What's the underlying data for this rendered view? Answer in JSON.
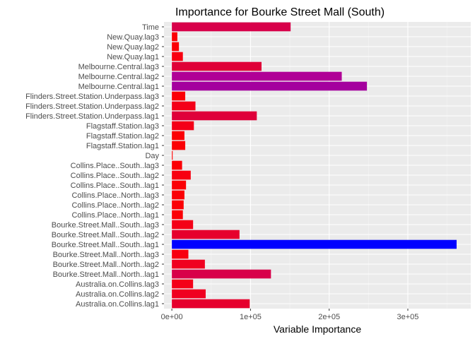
{
  "chart_data": {
    "type": "bar",
    "orientation": "horizontal",
    "title": "Importance for Bourke Street Mall (South)",
    "xlabel": "Variable Importance",
    "ylabel": "",
    "xlim": [
      -10000,
      380000
    ],
    "x_ticks": [
      0,
      100000,
      200000,
      300000
    ],
    "x_tick_labels": [
      "0e+00",
      "1e+05",
      "2e+05",
      "3e+05"
    ],
    "grid": true,
    "legend": "none",
    "categories": [
      "Time",
      "New.Quay.lag3",
      "New.Quay.lag2",
      "New.Quay.lag1",
      "Melbourne.Central.lag3",
      "Melbourne.Central.lag2",
      "Melbourne.Central.lag1",
      "Flinders.Street.Station.Underpass.lag3",
      "Flinders.Street.Station.Underpass.lag2",
      "Flinders.Street.Station.Underpass.lag1",
      "Flagstaff.Station.lag3",
      "Flagstaff.Station.lag2",
      "Flagstaff.Station.lag1",
      "Day",
      "Collins.Place..South..lag3",
      "Collins.Place..South..lag2",
      "Collins.Place..South..lag1",
      "Collins.Place..North..lag3",
      "Collins.Place..North..lag2",
      "Collins.Place..North..lag1",
      "Bourke.Street.Mall..South..lag3",
      "Bourke.Street.Mall..South..lag2",
      "Bourke.Street.Mall..South..lag1",
      "Bourke.Street.Mall..North..lag3",
      "Bourke.Street.Mall..North..lag2",
      "Bourke.Street.Mall..North..lag1",
      "Australia.on.Collins.lag3",
      "Australia.on.Collins.lag2",
      "Australia.on.Collins.lag1"
    ],
    "values": [
      151000,
      7000,
      9000,
      14000,
      114000,
      216000,
      248000,
      17000,
      30000,
      108000,
      28000,
      16000,
      17000,
      1000,
      13000,
      24000,
      18000,
      16000,
      15000,
      14000,
      27000,
      86000,
      362000,
      21000,
      42000,
      126000,
      27000,
      43000,
      99000
    ],
    "colors": [
      "#d8004a",
      "#fb0006",
      "#fb0006",
      "#f80010",
      "#df0037",
      "#b00096",
      "#a4009e",
      "#fb0006",
      "#f40018",
      "#df003a",
      "#f40018",
      "#fb0006",
      "#fb0006",
      "#ff0000",
      "#fb0006",
      "#f80010",
      "#fb0006",
      "#fb0006",
      "#fb0006",
      "#fb0006",
      "#f40018",
      "#e6002d",
      "#0000ff",
      "#f80010",
      "#f00020",
      "#d8004a",
      "#f40018",
      "#f00020",
      "#e6002d"
    ]
  }
}
